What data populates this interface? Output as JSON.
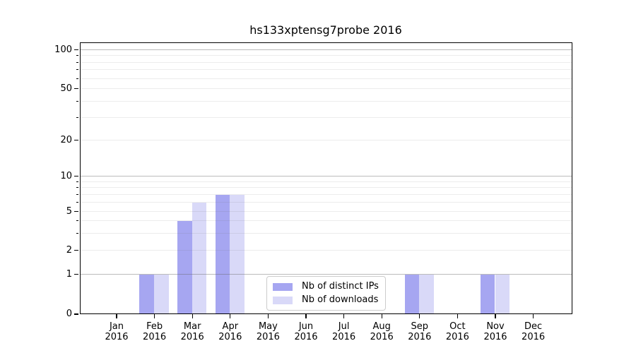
{
  "title": "hs133xptensg7probe 2016",
  "chart_data": {
    "type": "bar",
    "title": "hs133xptensg7probe 2016",
    "categories": [
      "Jan 2016",
      "Feb 2016",
      "Mar 2016",
      "Apr 2016",
      "May 2016",
      "Jun 2016",
      "Jul 2016",
      "Aug 2016",
      "Sep 2016",
      "Oct 2016",
      "Nov 2016",
      "Dec 2016"
    ],
    "series": [
      {
        "name": "Nb of distinct IPs",
        "color": "#a6a6f1",
        "values": [
          0,
          1,
          4,
          7,
          0,
          0,
          0,
          0,
          1,
          0,
          1,
          0
        ]
      },
      {
        "name": "Nb of downloads",
        "color": "#d9d9f8",
        "values": [
          0,
          1,
          6,
          7,
          0,
          0,
          0,
          0,
          1,
          0,
          1,
          0
        ]
      }
    ],
    "y_axis": {
      "scale": "log-like above 1 with linear 0-1 segment",
      "labeled_ticks": [
        0,
        1,
        2,
        5,
        10,
        20,
        50,
        100
      ],
      "major_gridlines": [
        1,
        10,
        100
      ],
      "minor_gridlines": [
        2,
        3,
        4,
        5,
        6,
        7,
        8,
        9,
        20,
        30,
        40,
        50,
        60,
        70,
        80,
        90
      ],
      "ylim": [
        0,
        130
      ]
    },
    "x_axis": {
      "label_format": "two lines: month / year"
    },
    "legend": {
      "position": "lower center"
    },
    "grid": {
      "orientation": "horizontal",
      "drawn_over_bars": true
    }
  },
  "colors": {
    "background": "#ffffff",
    "spine": "#000000",
    "grid_major": "rgba(105,105,105,0.45)",
    "grid_minor": "rgba(105,105,105,0.13)",
    "legend_border": "#cccccc"
  }
}
